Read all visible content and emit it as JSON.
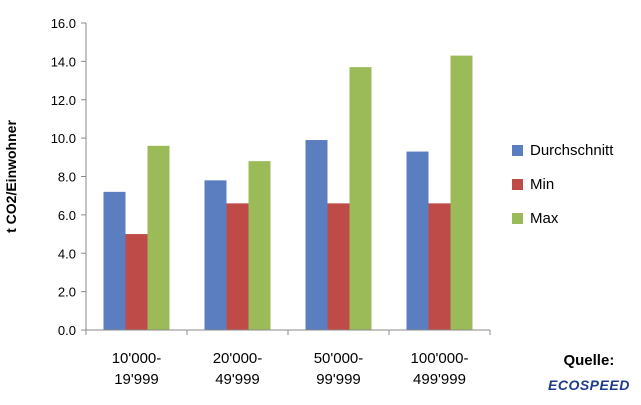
{
  "chart_data": {
    "type": "bar",
    "categories": [
      [
        "10'000-",
        "19'999"
      ],
      [
        "20'000-",
        "49'999"
      ],
      [
        "50'000-",
        "99'999"
      ],
      [
        "100'000-",
        "499'999"
      ]
    ],
    "series": [
      {
        "name": "Durchschnitt",
        "color": "#5b7ec0",
        "values": [
          7.2,
          7.8,
          9.9,
          9.3
        ]
      },
      {
        "name": "Min",
        "color": "#be4b48",
        "values": [
          5.0,
          6.6,
          6.6,
          6.6
        ]
      },
      {
        "name": "Max",
        "color": "#9bbb59",
        "values": [
          9.6,
          8.8,
          13.7,
          14.3
        ]
      }
    ],
    "ylabel": "t CO2/Einwohner",
    "ylim": [
      0,
      16
    ],
    "yticks": [
      "0.0",
      "2.0",
      "4.0",
      "6.0",
      "8.0",
      "10.0",
      "12.0",
      "14.0",
      "16.0"
    ],
    "grid": false,
    "legend_position": "right"
  },
  "source": {
    "label": "Quelle:",
    "logo_text": "ECOSPEED"
  }
}
